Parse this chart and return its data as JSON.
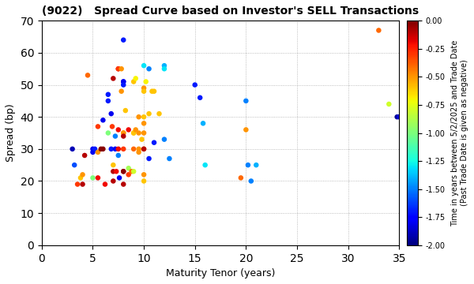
{
  "title": "(9022)   Spread Curve based on Investor's SELL Transactions",
  "xlabel": "Maturity Tenor (years)",
  "ylabel": "Spread (bp)",
  "colorbar_label_line1": "Time in years between 5/2/2025 and Trade Date",
  "colorbar_label_line2": "(Past Trade Date is given as negative)",
  "xlim": [
    0,
    35
  ],
  "ylim": [
    0,
    70
  ],
  "xticks": [
    0,
    5,
    10,
    15,
    20,
    25,
    30,
    35
  ],
  "yticks": [
    0,
    10,
    20,
    30,
    40,
    50,
    60,
    70
  ],
  "cmap": "jet",
  "vmin": -2.0,
  "vmax": 0.0,
  "marker_size": 22,
  "points": [
    [
      3.0,
      30,
      -1.9
    ],
    [
      3.2,
      25,
      -1.6
    ],
    [
      3.5,
      19,
      -0.3
    ],
    [
      3.8,
      21,
      -0.6
    ],
    [
      4.0,
      22,
      -0.5
    ],
    [
      4.0,
      19,
      -0.1
    ],
    [
      4.2,
      28,
      -0.1
    ],
    [
      4.5,
      53,
      -0.4
    ],
    [
      5.0,
      29,
      -1.8
    ],
    [
      5.0,
      30,
      -1.8
    ],
    [
      5.0,
      21,
      -1.0
    ],
    [
      5.2,
      30,
      -1.7
    ],
    [
      5.5,
      37,
      -0.3
    ],
    [
      5.5,
      29,
      -0.5
    ],
    [
      5.5,
      21,
      -0.2
    ],
    [
      5.8,
      30,
      -0.02
    ],
    [
      6.0,
      39,
      -1.8
    ],
    [
      6.0,
      30,
      -0.02
    ],
    [
      6.2,
      19,
      -0.2
    ],
    [
      6.5,
      35,
      -1.0
    ],
    [
      6.5,
      45,
      -1.7
    ],
    [
      6.5,
      47,
      -1.7
    ],
    [
      6.8,
      30,
      -1.7
    ],
    [
      6.8,
      41,
      -1.8
    ],
    [
      6.9,
      37,
      -0.3
    ],
    [
      7.0,
      52,
      -0.1
    ],
    [
      7.0,
      20,
      -0.1
    ],
    [
      7.0,
      23,
      -0.1
    ],
    [
      7.0,
      25,
      -0.6
    ],
    [
      7.2,
      34,
      -1.5
    ],
    [
      7.2,
      30,
      -1.8
    ],
    [
      7.3,
      23,
      -0.2
    ],
    [
      7.5,
      55,
      -0.2
    ],
    [
      7.5,
      55,
      -0.3
    ],
    [
      7.5,
      36,
      -0.2
    ],
    [
      7.5,
      30,
      -0.2
    ],
    [
      7.5,
      28,
      -1.5
    ],
    [
      7.6,
      21,
      -1.8
    ],
    [
      7.8,
      55,
      -0.5
    ],
    [
      7.8,
      48,
      -0.5
    ],
    [
      8.0,
      64,
      -1.7
    ],
    [
      8.0,
      51,
      -1.7
    ],
    [
      8.0,
      51,
      -1.8
    ],
    [
      8.0,
      50,
      -1.7
    ],
    [
      8.0,
      35,
      -0.5
    ],
    [
      8.0,
      35,
      -0.5
    ],
    [
      8.0,
      34,
      -0.1
    ],
    [
      8.0,
      30,
      -0.3
    ],
    [
      8.0,
      23,
      -0.1
    ],
    [
      8.0,
      23,
      -0.02
    ],
    [
      8.0,
      19,
      -0.1
    ],
    [
      8.2,
      42,
      -0.6
    ],
    [
      8.5,
      36,
      -0.2
    ],
    [
      8.5,
      24,
      -0.9
    ],
    [
      8.5,
      22,
      -0.3
    ],
    [
      8.8,
      23,
      -0.4
    ],
    [
      9.0,
      51,
      -0.6
    ],
    [
      9.0,
      35,
      -0.6
    ],
    [
      9.0,
      35,
      -0.6
    ],
    [
      9.0,
      30,
      -0.4
    ],
    [
      9.0,
      23,
      -0.8
    ],
    [
      9.2,
      52,
      -0.7
    ],
    [
      9.2,
      36,
      -0.5
    ],
    [
      9.5,
      40,
      -0.5
    ],
    [
      9.5,
      35,
      -0.5
    ],
    [
      9.5,
      30,
      -0.5
    ],
    [
      9.5,
      29,
      -0.5
    ],
    [
      9.8,
      33,
      -0.6
    ],
    [
      10.0,
      56,
      -1.3
    ],
    [
      10.0,
      49,
      -0.5
    ],
    [
      10.0,
      48,
      -0.6
    ],
    [
      10.0,
      40,
      -0.6
    ],
    [
      10.0,
      38,
      -0.5
    ],
    [
      10.0,
      35,
      -0.5
    ],
    [
      10.0,
      30,
      -0.5
    ],
    [
      10.0,
      30,
      -0.1
    ],
    [
      10.0,
      22,
      -0.5
    ],
    [
      10.0,
      20,
      -0.6
    ],
    [
      10.2,
      51,
      -0.7
    ],
    [
      10.5,
      55,
      -1.5
    ],
    [
      10.5,
      41,
      -0.6
    ],
    [
      10.5,
      27,
      -1.7
    ],
    [
      10.8,
      48,
      -0.6
    ],
    [
      11.0,
      48,
      -0.6
    ],
    [
      11.0,
      32,
      -1.7
    ],
    [
      11.5,
      41,
      -0.6
    ],
    [
      12.0,
      56,
      -1.4
    ],
    [
      12.0,
      55,
      -1.3
    ],
    [
      12.0,
      33,
      -1.5
    ],
    [
      12.5,
      27,
      -1.5
    ],
    [
      15.0,
      50,
      -1.7
    ],
    [
      15.5,
      46,
      -1.7
    ],
    [
      15.8,
      38,
      -1.4
    ],
    [
      16.0,
      25,
      -1.3
    ],
    [
      19.5,
      21,
      -0.4
    ],
    [
      20.0,
      36,
      -0.5
    ],
    [
      20.0,
      45,
      -1.5
    ],
    [
      20.2,
      25,
      -1.5
    ],
    [
      20.5,
      20,
      -1.5
    ],
    [
      21.0,
      25,
      -1.4
    ],
    [
      33.0,
      67,
      -0.4
    ],
    [
      34.0,
      44,
      -0.8
    ],
    [
      34.8,
      40,
      -1.95
    ],
    [
      35.0,
      40,
      -1.85
    ]
  ]
}
